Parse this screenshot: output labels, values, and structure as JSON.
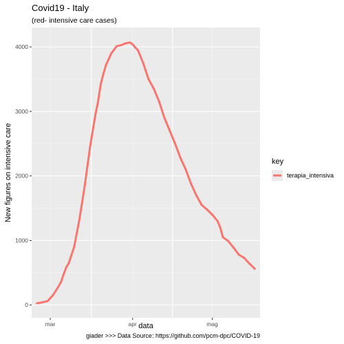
{
  "chart_data": {
    "type": "line",
    "title": "Covid19 - Italy",
    "subtitle": "(red- intensive care cases)",
    "xlabel": "data",
    "ylabel": "New figures on intensive care",
    "caption": "giader >>> Data Source: https://github.com/pcm-dpc/COVID-19",
    "grid": true,
    "legend": {
      "title": "key",
      "position": "right",
      "entries": [
        {
          "name": "terapia_intensiva",
          "color": "#F8766D"
        }
      ]
    },
    "x_ticks": [
      {
        "label": "mar",
        "day": 5
      },
      {
        "label": "apr",
        "day": 36
      },
      {
        "label": "mag",
        "day": 66
      }
    ],
    "xlim": [
      -2,
      84
    ],
    "y_ticks": [
      0,
      1000,
      2000,
      3000,
      4000
    ],
    "ylim": [
      -200,
      4300
    ],
    "series": [
      {
        "name": "terapia_intensiva",
        "color": "#F8766D",
        "x": [
          0,
          2,
          4,
          6,
          8,
          9,
          10,
          11,
          12,
          14,
          16,
          18,
          20,
          22,
          23,
          24,
          25,
          26,
          28,
          30,
          32,
          33,
          34,
          35,
          36,
          37,
          38,
          40,
          42,
          44,
          46,
          48,
          50,
          52,
          54,
          56,
          58,
          60,
          62,
          64,
          66,
          68,
          69,
          70,
          72,
          74,
          76,
          78,
          80,
          82
        ],
        "values": [
          26,
          40,
          60,
          150,
          280,
          350,
          470,
          580,
          650,
          900,
          1330,
          1850,
          2450,
          2950,
          3150,
          3420,
          3580,
          3720,
          3900,
          4010,
          4030,
          4050,
          4060,
          4068,
          4040,
          3990,
          3950,
          3750,
          3500,
          3350,
          3150,
          2900,
          2700,
          2500,
          2280,
          2100,
          1880,
          1700,
          1550,
          1480,
          1400,
          1300,
          1200,
          1050,
          990,
          890,
          780,
          730,
          640,
          560
        ]
      }
    ]
  }
}
